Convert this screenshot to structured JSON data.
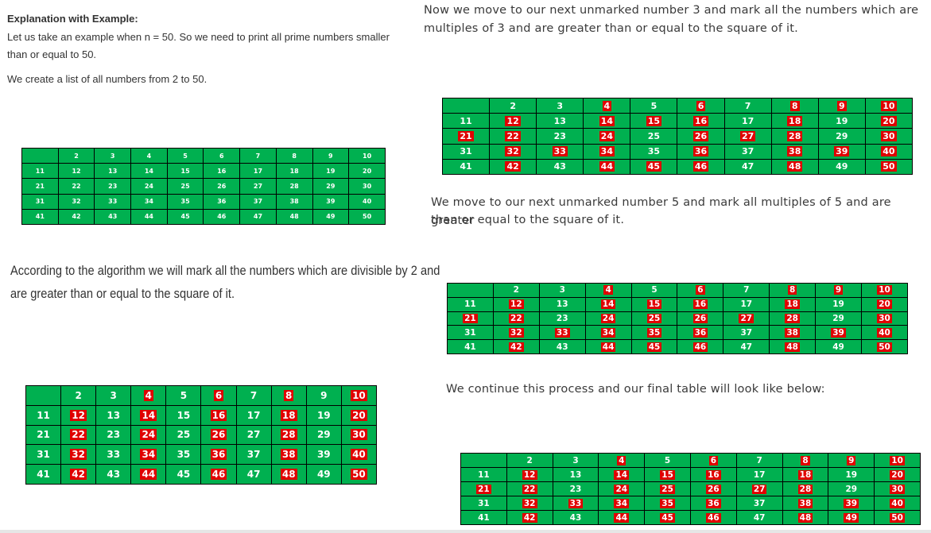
{
  "left": {
    "heading": "Explanation with Example:",
    "intro_line1": "Let us take an example when n = 50. So we need to print all prime numbers smaller",
    "intro_line2": "than or equal to 50.",
    "create_list": "We create a list of all numbers from 2 to 50.",
    "algo_line1": "According to the algorithm we will mark all the numbers which are divisible by 2 and",
    "algo_line2": "are greater than or equal to the square of it."
  },
  "right": {
    "step3_line1": "Now we move to our next unmarked number 3 and mark all the numbers which are",
    "step3_line2": "multiples of 3 and are greater than or equal to the square of it.",
    "step5_line1": "We move to our next unmarked number 5 and mark all multiples of 5 and are greater",
    "step5_line2": "than or equal to the square of it.",
    "final": "We continue this process and our final table will look like below:"
  },
  "tables": [
    {
      "id": "initial",
      "marked": []
    },
    {
      "id": "after-2",
      "marked": [
        4,
        6,
        8,
        10,
        12,
        14,
        16,
        18,
        20,
        22,
        24,
        26,
        28,
        30,
        32,
        34,
        36,
        38,
        40,
        42,
        44,
        46,
        48,
        50
      ]
    },
    {
      "id": "after-3",
      "marked": [
        4,
        6,
        8,
        9,
        10,
        12,
        14,
        15,
        16,
        18,
        20,
        21,
        22,
        24,
        26,
        27,
        28,
        30,
        32,
        33,
        34,
        36,
        38,
        39,
        40,
        42,
        44,
        45,
        46,
        48,
        50
      ]
    },
    {
      "id": "after-5",
      "marked": [
        4,
        6,
        8,
        9,
        10,
        12,
        14,
        15,
        16,
        18,
        20,
        21,
        22,
        24,
        25,
        26,
        27,
        28,
        30,
        32,
        33,
        34,
        35,
        36,
        38,
        39,
        40,
        42,
        44,
        45,
        46,
        48,
        50
      ]
    },
    {
      "id": "final",
      "marked": [
        4,
        6,
        8,
        9,
        10,
        12,
        14,
        15,
        16,
        18,
        20,
        21,
        22,
        24,
        25,
        26,
        27,
        28,
        30,
        32,
        33,
        34,
        35,
        36,
        38,
        39,
        40,
        42,
        44,
        45,
        46,
        48,
        49,
        50
      ]
    }
  ],
  "colors": {
    "cell_green": "#00b050",
    "mark_red": "#e00000"
  }
}
